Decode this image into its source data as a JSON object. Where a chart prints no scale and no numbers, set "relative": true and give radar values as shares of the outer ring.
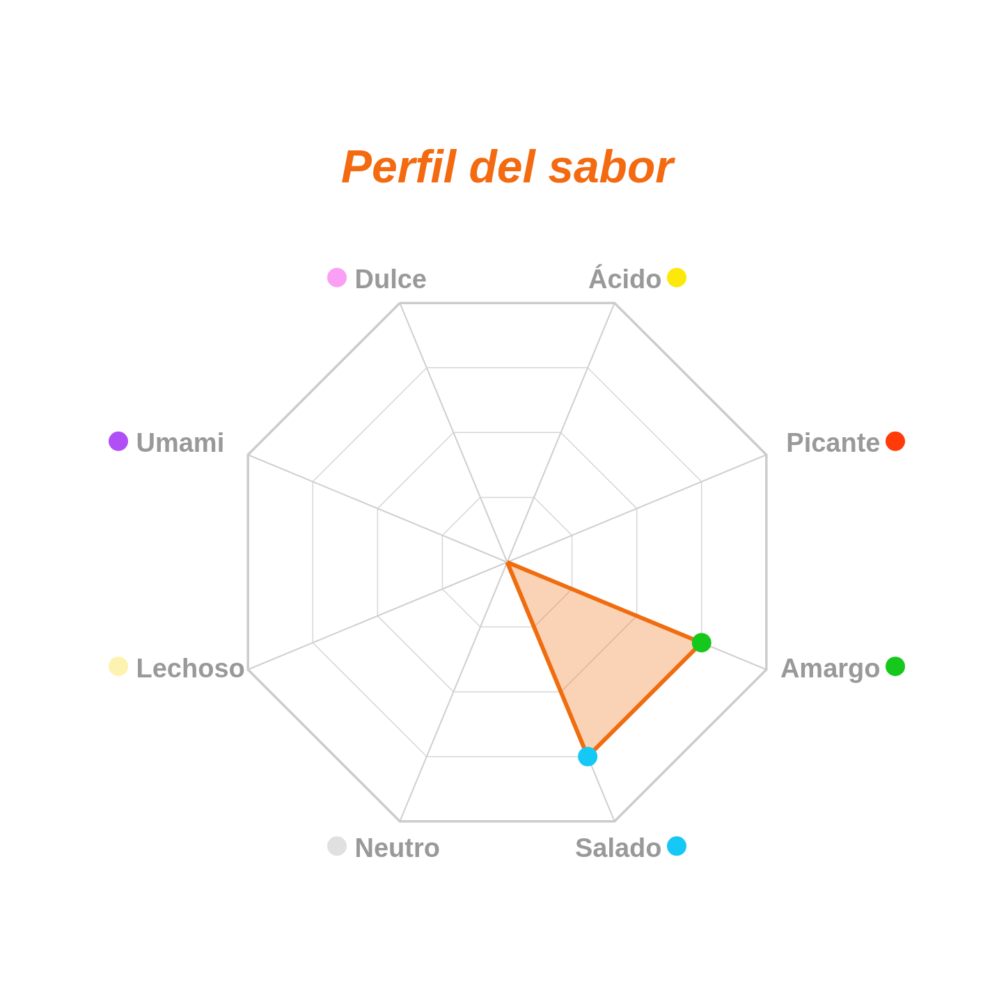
{
  "chart_data": {
    "type": "radar",
    "title": "Perfil del sabor",
    "categories": [
      "Dulce",
      "Ácido",
      "Picante",
      "Amargo",
      "Salado",
      "Neutro",
      "Lechoso",
      "Umami"
    ],
    "colors": [
      "#f9a0f5",
      "#fce80a",
      "#ff3b0a",
      "#17c81c",
      "#16c8f5",
      "#e0e0e0",
      "#fdf2b0",
      "#b04ff5"
    ],
    "series": [
      {
        "color": "#f06d0f",
        "values": [
          0,
          0,
          0,
          0.75,
          0.75,
          0,
          0,
          0
        ]
      }
    ],
    "relative": true,
    "grid": true,
    "marker": "circle"
  }
}
